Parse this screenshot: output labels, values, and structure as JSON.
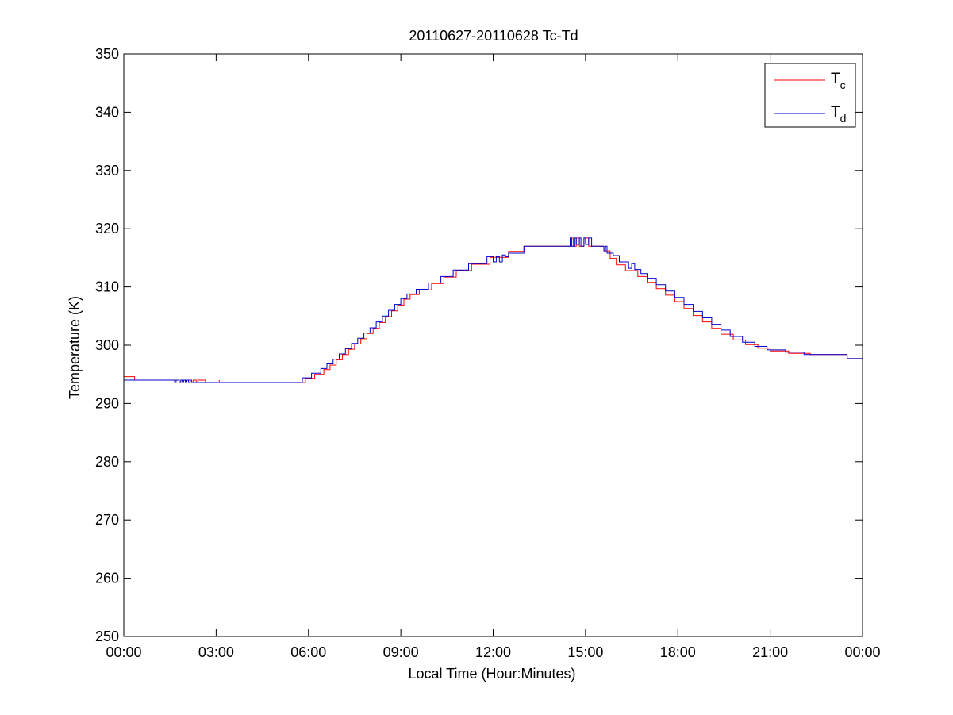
{
  "chart_data": {
    "type": "line",
    "title": "20110627-20110628 Tc-Td",
    "xlabel": "Local Time (Hour:Minutes)",
    "ylabel": "Temperature (K)",
    "x_unit": "hours",
    "xlim": [
      0,
      24
    ],
    "ylim": [
      250,
      350
    ],
    "x_ticks": [
      0,
      3,
      6,
      9,
      12,
      15,
      18,
      21,
      24
    ],
    "x_tick_labels": [
      "00:00",
      "03:00",
      "06:00",
      "09:00",
      "12:00",
      "15:00",
      "18:00",
      "21:00",
      "00:00"
    ],
    "y_ticks": [
      250,
      260,
      270,
      280,
      290,
      300,
      310,
      320,
      330,
      340,
      350
    ],
    "y_tick_labels": [
      "250",
      "260",
      "270",
      "280",
      "290",
      "300",
      "310",
      "320",
      "330",
      "340",
      "350"
    ],
    "grid": false,
    "legend_position": "top-right",
    "series": [
      {
        "name": "Tc",
        "legend_main": "T",
        "legend_sub": "c",
        "color": "#ff0000",
        "x": [
          0.0,
          0.35,
          0.35,
          1.75,
          1.8,
          1.85,
          2.0,
          2.05,
          2.2,
          2.25,
          2.35,
          2.4,
          2.6,
          2.65,
          3.1,
          3.1,
          5.6,
          5.9,
          6.2,
          6.5,
          6.7,
          6.9,
          7.1,
          7.3,
          7.5,
          7.7,
          7.9,
          8.1,
          8.3,
          8.5,
          8.7,
          8.9,
          9.1,
          9.3,
          9.6,
          10.0,
          10.4,
          10.8,
          11.3,
          11.9,
          12.5,
          13.0,
          13.5,
          14.0,
          14.5,
          14.6,
          14.7,
          14.8,
          14.95,
          15.1,
          15.3,
          15.6,
          15.8,
          16.0,
          16.3,
          16.7,
          17.0,
          17.3,
          17.6,
          17.9,
          18.2,
          18.5,
          18.8,
          19.1,
          19.4,
          19.8,
          20.2,
          20.6,
          21.0,
          21.6,
          22.3,
          23.0,
          23.5,
          23.5,
          24.0
        ],
        "y": [
          294.6,
          294.6,
          294.0,
          294.0,
          293.6,
          294.0,
          293.6,
          294.0,
          293.6,
          294.0,
          293.6,
          294.0,
          294.0,
          293.6,
          294.0,
          293.6,
          293.6,
          294.3,
          295.0,
          295.8,
          296.6,
          297.5,
          298.4,
          299.3,
          300.2,
          301.1,
          302.0,
          302.9,
          303.9,
          304.9,
          305.9,
          306.9,
          307.9,
          308.7,
          309.5,
          310.6,
          311.7,
          312.8,
          313.9,
          315.1,
          316.1,
          317.0,
          317.0,
          317.0,
          318.4,
          317.0,
          318.4,
          317.0,
          318.4,
          317.0,
          317.0,
          316.2,
          314.9,
          313.8,
          312.8,
          311.8,
          310.8,
          309.7,
          308.6,
          307.5,
          306.3,
          305.1,
          304.0,
          302.9,
          301.9,
          300.9,
          300.1,
          299.5,
          299.0,
          298.6,
          298.4,
          298.4,
          298.4,
          297.7,
          297.7
        ]
      },
      {
        "name": "Td",
        "legend_main": "T",
        "legend_sub": "d",
        "color": "#0000cc",
        "x": [
          0.0,
          1.6,
          1.65,
          1.7,
          1.8,
          1.85,
          1.9,
          1.95,
          2.0,
          2.05,
          2.1,
          2.15,
          2.2,
          2.4,
          3.0,
          5.6,
          5.8,
          6.1,
          6.4,
          6.6,
          6.8,
          7.0,
          7.2,
          7.4,
          7.6,
          7.8,
          8.0,
          8.2,
          8.4,
          8.6,
          8.8,
          9.0,
          9.2,
          9.5,
          9.9,
          10.3,
          10.7,
          11.2,
          11.8,
          12.0,
          12.1,
          12.2,
          12.3,
          12.4,
          12.5,
          13.0,
          13.5,
          14.0,
          14.5,
          14.55,
          14.65,
          14.7,
          14.8,
          14.85,
          14.95,
          15.0,
          15.1,
          15.2,
          15.3,
          15.55,
          15.6,
          15.65,
          15.7,
          15.9,
          16.1,
          16.4,
          16.5,
          16.6,
          16.8,
          17.0,
          17.3,
          17.6,
          17.9,
          18.2,
          18.5,
          18.8,
          19.1,
          19.4,
          19.7,
          20.1,
          20.5,
          20.9,
          21.5,
          22.1,
          22.8,
          23.5,
          24.0
        ],
        "y": [
          294.0,
          294.0,
          293.6,
          294.0,
          293.6,
          294.0,
          293.6,
          294.0,
          293.6,
          294.0,
          293.6,
          294.0,
          293.6,
          293.6,
          293.6,
          293.6,
          294.4,
          295.2,
          296.0,
          296.8,
          297.6,
          298.5,
          299.4,
          300.3,
          301.2,
          302.1,
          303.0,
          304.0,
          305.0,
          306.0,
          307.0,
          308.0,
          308.8,
          309.6,
          310.7,
          311.8,
          312.9,
          314.0,
          315.2,
          314.3,
          315.2,
          314.3,
          315.5,
          315.2,
          315.8,
          317.0,
          317.0,
          317.0,
          318.4,
          317.0,
          318.4,
          317.3,
          318.4,
          317.0,
          318.4,
          317.3,
          318.4,
          317.0,
          317.0,
          317.0,
          316.2,
          317.0,
          315.8,
          315.4,
          314.3,
          313.2,
          314.0,
          313.0,
          312.3,
          311.5,
          310.4,
          309.3,
          308.2,
          307.0,
          305.8,
          304.7,
          303.6,
          302.6,
          301.5,
          300.5,
          299.8,
          299.2,
          298.8,
          298.4,
          298.4,
          297.7,
          297.7
        ]
      }
    ]
  }
}
